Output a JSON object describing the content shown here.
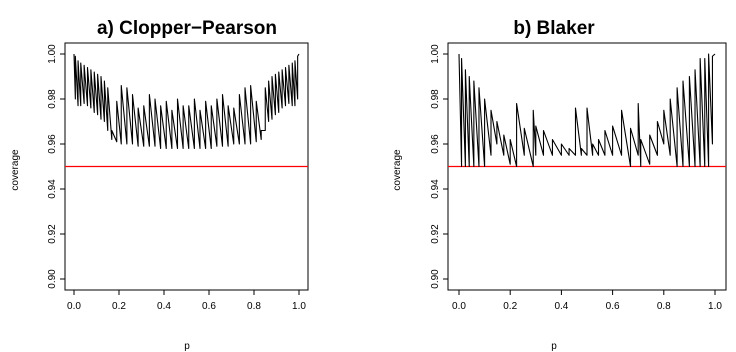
{
  "colors": {
    "series": "#000000",
    "reference": "#ff0000"
  },
  "chart_data": [
    {
      "type": "line",
      "title": "a) Clopper−Pearson",
      "xlabel": "p",
      "ylabel": "coverage",
      "xlim": [
        0,
        1
      ],
      "ylim": [
        0.9,
        1.0
      ],
      "xticks": [
        0.0,
        0.2,
        0.4,
        0.6,
        0.8,
        1.0
      ],
      "xtick_labels": [
        "0.0",
        "0.2",
        "0.4",
        "0.6",
        "0.8",
        "1.0"
      ],
      "yticks": [
        0.9,
        0.92,
        0.94,
        0.96,
        0.98,
        1.0
      ],
      "ytick_labels": [
        "0.90",
        "0.92",
        "0.94",
        "0.96",
        "0.98",
        "1.00"
      ],
      "reference_line": {
        "y": 0.95,
        "color": "#ff0000"
      },
      "grid": false,
      "series": [
        {
          "x": [
            0.0,
            0.006,
            0.006,
            0.018,
            0.018,
            0.03,
            0.03,
            0.045,
            0.045,
            0.06,
            0.06,
            0.075,
            0.075,
            0.09,
            0.09,
            0.105,
            0.105,
            0.12,
            0.12,
            0.135,
            0.135,
            0.15,
            0.15,
            0.168,
            0.168,
            0.19,
            0.19,
            0.21,
            0.21,
            0.235,
            0.235,
            0.26,
            0.26,
            0.285,
            0.285,
            0.31,
            0.31,
            0.335,
            0.335,
            0.36,
            0.36,
            0.385,
            0.385,
            0.41,
            0.41,
            0.435,
            0.435,
            0.46,
            0.46,
            0.485,
            0.485,
            0.51,
            0.51,
            0.535,
            0.535,
            0.56,
            0.56,
            0.585,
            0.585,
            0.61,
            0.61,
            0.635,
            0.635,
            0.66,
            0.66,
            0.685,
            0.685,
            0.71,
            0.71,
            0.735,
            0.735,
            0.76,
            0.76,
            0.785,
            0.785,
            0.81,
            0.81,
            0.832,
            0.832,
            0.85,
            0.85,
            0.865,
            0.865,
            0.88,
            0.88,
            0.895,
            0.895,
            0.91,
            0.91,
            0.925,
            0.925,
            0.94,
            0.94,
            0.955,
            0.955,
            0.97,
            0.97,
            0.982,
            0.982,
            0.994,
            0.994,
            1.0
          ],
          "y": [
            1.0,
            0.98,
            0.999,
            0.977,
            0.997,
            0.977,
            0.996,
            0.978,
            0.995,
            0.977,
            0.994,
            0.976,
            0.993,
            0.974,
            0.992,
            0.973,
            0.991,
            0.971,
            0.99,
            0.97,
            0.988,
            0.966,
            0.985,
            0.962,
            0.966,
            0.961,
            0.979,
            0.96,
            0.986,
            0.96,
            0.985,
            0.96,
            0.982,
            0.959,
            0.976,
            0.959,
            0.977,
            0.959,
            0.982,
            0.959,
            0.98,
            0.958,
            0.977,
            0.958,
            0.979,
            0.958,
            0.975,
            0.958,
            0.98,
            0.958,
            0.977,
            0.958,
            0.977,
            0.958,
            0.98,
            0.958,
            0.975,
            0.958,
            0.979,
            0.958,
            0.977,
            0.959,
            0.98,
            0.959,
            0.982,
            0.959,
            0.977,
            0.96,
            0.976,
            0.96,
            0.982,
            0.96,
            0.985,
            0.96,
            0.986,
            0.961,
            0.979,
            0.962,
            0.966,
            0.966,
            0.985,
            0.97,
            0.988,
            0.971,
            0.99,
            0.973,
            0.991,
            0.974,
            0.992,
            0.976,
            0.993,
            0.977,
            0.994,
            0.978,
            0.995,
            0.977,
            0.996,
            0.977,
            0.997,
            0.98,
            0.999,
            1.0
          ]
        }
      ]
    },
    {
      "type": "line",
      "title": "b) Blaker",
      "xlabel": "p",
      "ylabel": "coverage",
      "xlim": [
        0,
        1
      ],
      "ylim": [
        0.9,
        1.0
      ],
      "xticks": [
        0.0,
        0.2,
        0.4,
        0.6,
        0.8,
        1.0
      ],
      "xtick_labels": [
        "0.0",
        "0.2",
        "0.4",
        "0.6",
        "0.8",
        "1.0"
      ],
      "yticks": [
        0.9,
        0.92,
        0.94,
        0.96,
        0.98,
        1.0
      ],
      "ytick_labels": [
        "0.90",
        "0.92",
        "0.94",
        "0.96",
        "0.98",
        "1.00"
      ],
      "reference_line": {
        "y": 0.95,
        "color": "#ff0000"
      },
      "grid": false,
      "series": [
        {
          "x": [
            0.0,
            0.01,
            0.01,
            0.025,
            0.025,
            0.04,
            0.04,
            0.058,
            0.058,
            0.078,
            0.078,
            0.1,
            0.1,
            0.125,
            0.125,
            0.148,
            0.148,
            0.175,
            0.175,
            0.2,
            0.2,
            0.225,
            0.225,
            0.255,
            0.255,
            0.29,
            0.29,
            0.3,
            0.3,
            0.33,
            0.33,
            0.365,
            0.365,
            0.4,
            0.4,
            0.43,
            0.43,
            0.455,
            0.455,
            0.478,
            0.478,
            0.5,
            0.5,
            0.522,
            0.522,
            0.545,
            0.545,
            0.57,
            0.57,
            0.6,
            0.6,
            0.635,
            0.635,
            0.67,
            0.67,
            0.7,
            0.7,
            0.71,
            0.71,
            0.745,
            0.745,
            0.775,
            0.775,
            0.8,
            0.8,
            0.825,
            0.825,
            0.852,
            0.852,
            0.875,
            0.875,
            0.9,
            0.9,
            0.922,
            0.922,
            0.942,
            0.942,
            0.96,
            0.96,
            0.975,
            0.975,
            0.99,
            0.99,
            1.0
          ],
          "y": [
            1.0,
            0.95,
            0.998,
            0.95,
            0.993,
            0.95,
            0.99,
            0.95,
            0.988,
            0.95,
            0.985,
            0.95,
            0.98,
            0.955,
            0.975,
            0.96,
            0.97,
            0.955,
            0.964,
            0.951,
            0.962,
            0.95,
            0.978,
            0.955,
            0.967,
            0.95,
            0.975,
            0.955,
            0.968,
            0.955,
            0.966,
            0.955,
            0.962,
            0.955,
            0.96,
            0.955,
            0.958,
            0.955,
            0.976,
            0.955,
            0.958,
            0.955,
            0.976,
            0.955,
            0.96,
            0.955,
            0.962,
            0.955,
            0.966,
            0.955,
            0.968,
            0.955,
            0.975,
            0.95,
            0.967,
            0.955,
            0.978,
            0.95,
            0.962,
            0.951,
            0.964,
            0.955,
            0.97,
            0.96,
            0.975,
            0.955,
            0.98,
            0.95,
            0.985,
            0.95,
            0.988,
            0.95,
            0.99,
            0.95,
            0.993,
            0.95,
            0.998,
            0.95,
            0.998,
            0.95,
            1.0,
            0.96,
            0.999,
            1.0
          ]
        }
      ]
    }
  ]
}
